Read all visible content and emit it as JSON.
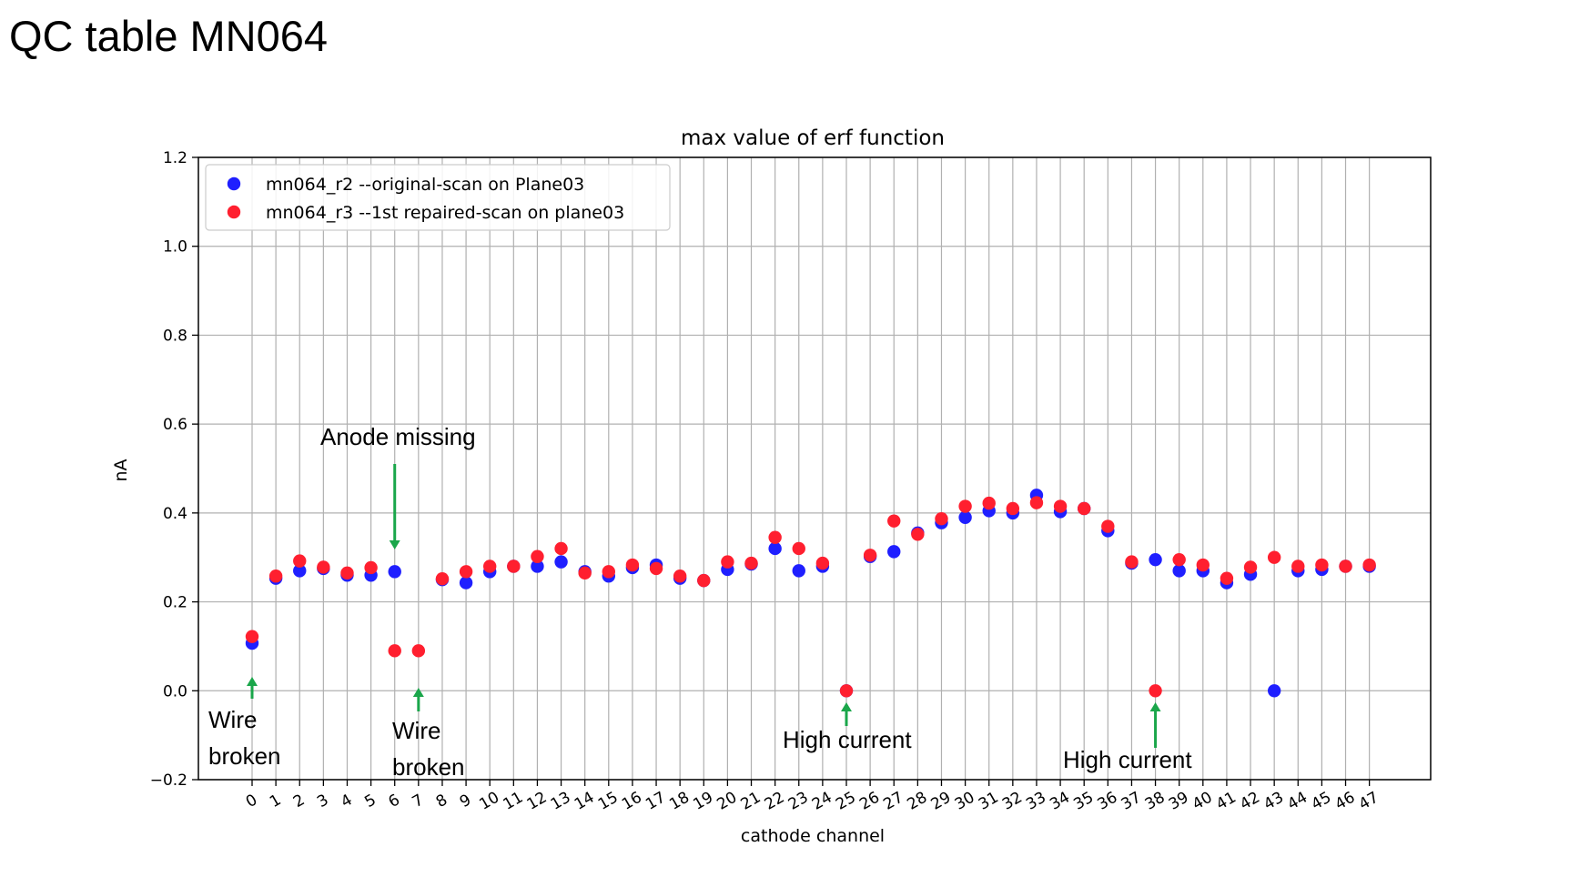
{
  "slide": {
    "title": "QC table MN064"
  },
  "chart_data": {
    "type": "scatter",
    "title": "max value of erf function",
    "xlabel": "cathode channel",
    "ylabel": "nA",
    "ylim": [
      -0.2,
      1.2
    ],
    "yticks": [
      -0.2,
      0.0,
      0.2,
      0.4,
      0.6,
      0.8,
      1.0,
      1.2
    ],
    "ytick_labels": [
      "−0.2",
      "0.0",
      "0.2",
      "0.4",
      "0.6",
      "0.8",
      "1.0",
      "1.2"
    ],
    "x_categories": [
      "0",
      "1",
      "2",
      "3",
      "4",
      "5",
      "6",
      "7",
      "8",
      "9",
      "10",
      "11",
      "12",
      "13",
      "14",
      "15",
      "16",
      "17",
      "18",
      "19",
      "20",
      "21",
      "22",
      "23",
      "24",
      "25",
      "26",
      "27",
      "28",
      "29",
      "30",
      "31",
      "32",
      "33",
      "34",
      "35",
      "36",
      "37",
      "38",
      "39",
      "40",
      "41",
      "42",
      "43",
      "44",
      "45",
      "46",
      "47"
    ],
    "grid": true,
    "legend_position": "top-left",
    "series": [
      {
        "name": "mn064_r2 --original-scan on Plane03",
        "color": "#1f1fff",
        "points": [
          [
            0,
            0.107
          ],
          [
            1,
            0.253
          ],
          [
            2,
            0.27
          ],
          [
            3,
            0.275
          ],
          [
            4,
            0.26
          ],
          [
            5,
            0.26
          ],
          [
            6,
            0.268
          ],
          [
            8,
            0.25
          ],
          [
            9,
            0.243
          ],
          [
            10,
            0.268
          ],
          [
            11,
            0.28
          ],
          [
            12,
            0.28
          ],
          [
            13,
            0.29
          ],
          [
            14,
            0.268
          ],
          [
            15,
            0.258
          ],
          [
            16,
            0.277
          ],
          [
            17,
            0.283
          ],
          [
            18,
            0.253
          ],
          [
            19,
            0.248
          ],
          [
            20,
            0.273
          ],
          [
            21,
            0.285
          ],
          [
            22,
            0.32
          ],
          [
            23,
            0.27
          ],
          [
            24,
            0.28
          ],
          [
            25,
            0.0
          ],
          [
            26,
            0.302
          ],
          [
            27,
            0.313
          ],
          [
            28,
            0.355
          ],
          [
            29,
            0.378
          ],
          [
            30,
            0.39
          ],
          [
            31,
            0.405
          ],
          [
            32,
            0.4
          ],
          [
            33,
            0.44
          ],
          [
            34,
            0.403
          ],
          [
            35,
            0.41
          ],
          [
            36,
            0.36
          ],
          [
            37,
            0.287
          ],
          [
            38,
            0.295
          ],
          [
            39,
            0.27
          ],
          [
            40,
            0.27
          ],
          [
            41,
            0.243
          ],
          [
            42,
            0.262
          ],
          [
            43,
            0.0
          ],
          [
            44,
            0.27
          ],
          [
            45,
            0.273
          ],
          [
            46,
            0.28
          ],
          [
            47,
            0.28
          ]
        ]
      },
      {
        "name": "mn064_r3 --1st repaired-scan on plane03",
        "color": "#ff1f2f",
        "points": [
          [
            0,
            0.122
          ],
          [
            1,
            0.258
          ],
          [
            2,
            0.292
          ],
          [
            3,
            0.278
          ],
          [
            4,
            0.265
          ],
          [
            5,
            0.277
          ],
          [
            6,
            0.09
          ],
          [
            7,
            0.09
          ],
          [
            8,
            0.252
          ],
          [
            9,
            0.268
          ],
          [
            10,
            0.28
          ],
          [
            11,
            0.28
          ],
          [
            12,
            0.302
          ],
          [
            13,
            0.32
          ],
          [
            14,
            0.265
          ],
          [
            15,
            0.268
          ],
          [
            16,
            0.283
          ],
          [
            17,
            0.275
          ],
          [
            18,
            0.258
          ],
          [
            19,
            0.248
          ],
          [
            20,
            0.29
          ],
          [
            21,
            0.287
          ],
          [
            22,
            0.345
          ],
          [
            23,
            0.32
          ],
          [
            24,
            0.287
          ],
          [
            25,
            0.0
          ],
          [
            26,
            0.305
          ],
          [
            27,
            0.382
          ],
          [
            28,
            0.352
          ],
          [
            29,
            0.387
          ],
          [
            30,
            0.415
          ],
          [
            31,
            0.422
          ],
          [
            32,
            0.41
          ],
          [
            33,
            0.423
          ],
          [
            34,
            0.415
          ],
          [
            35,
            0.41
          ],
          [
            36,
            0.37
          ],
          [
            37,
            0.29
          ],
          [
            38,
            0.0
          ],
          [
            39,
            0.295
          ],
          [
            40,
            0.283
          ],
          [
            41,
            0.253
          ],
          [
            42,
            0.278
          ],
          [
            43,
            0.3
          ],
          [
            44,
            0.28
          ],
          [
            45,
            0.283
          ],
          [
            46,
            0.28
          ],
          [
            47,
            0.283
          ]
        ]
      }
    ],
    "annotations": [
      {
        "lines": [
          "Wire",
          "broken"
        ],
        "channel": 0,
        "arrow": "up"
      },
      {
        "lines": [
          "Anode missing"
        ],
        "channel": 6,
        "arrow": "down"
      },
      {
        "lines": [
          "Wire",
          "broken"
        ],
        "channel": 7,
        "arrow": "up"
      },
      {
        "lines": [
          "High current"
        ],
        "channel": 25,
        "arrow": "up"
      },
      {
        "lines": [
          "High current"
        ],
        "channel": 38,
        "arrow": "up"
      }
    ],
    "annotation_arrow_color": "#1aa64a"
  }
}
